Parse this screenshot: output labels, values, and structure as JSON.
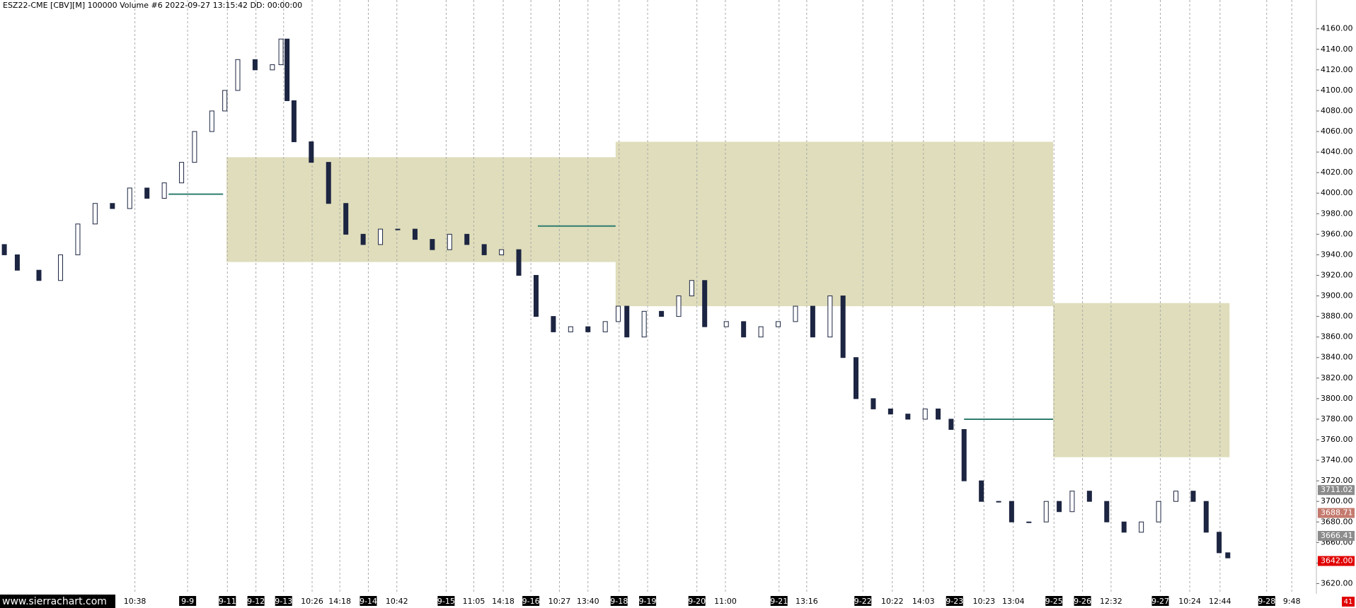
{
  "chart_data": {
    "type": "candlestick",
    "title": "ESZ22-CME [CBV][M] 100000 Volume #6 2022-09-27 13:15:42 DD: 00:00:00",
    "watermark": "www.sierrachart.com",
    "corner_label": "41",
    "xlim": [
      0,
      1520
    ],
    "ylim": [
      3610,
      4188
    ],
    "yticks": [
      {
        "value": 3620,
        "label": "3620.00"
      },
      {
        "value": 3640,
        "label": "3640.00"
      },
      {
        "value": 3660,
        "label": "3660.00"
      },
      {
        "value": 3680,
        "label": "3680.00"
      },
      {
        "value": 3700,
        "label": "3700.00"
      },
      {
        "value": 3720,
        "label": "3720.00"
      },
      {
        "value": 3740,
        "label": "3740.00"
      },
      {
        "value": 3760,
        "label": "3760.00"
      },
      {
        "value": 3780,
        "label": "3780.00"
      },
      {
        "value": 3800,
        "label": "3800.00"
      },
      {
        "value": 3820,
        "label": "3820.00"
      },
      {
        "value": 3840,
        "label": "3840.00"
      },
      {
        "value": 3860,
        "label": "3860.00"
      },
      {
        "value": 3880,
        "label": "3880.00"
      },
      {
        "value": 3900,
        "label": "3900.00"
      },
      {
        "value": 3920,
        "label": "3920.00"
      },
      {
        "value": 3940,
        "label": "3940.00"
      },
      {
        "value": 3960,
        "label": "3960.00"
      },
      {
        "value": 3980,
        "label": "3980.00"
      },
      {
        "value": 4000,
        "label": "4000.00"
      },
      {
        "value": 4020,
        "label": "4020.00"
      },
      {
        "value": 4040,
        "label": "4040.00"
      },
      {
        "value": 4060,
        "label": "4060.00"
      },
      {
        "value": 4080,
        "label": "4080.00"
      },
      {
        "value": 4100,
        "label": "4100.00"
      },
      {
        "value": 4120,
        "label": "4120.00"
      },
      {
        "value": 4140,
        "label": "4140.00"
      },
      {
        "value": 4160,
        "label": "4160.00"
      }
    ],
    "xticks": [
      {
        "value": 156,
        "label": "10:38"
      },
      {
        "value": 217,
        "label": "9-9"
      },
      {
        "value": 263,
        "label": "9-11"
      },
      {
        "value": 296,
        "label": "9-12"
      },
      {
        "value": 328,
        "label": "9-13"
      },
      {
        "value": 361,
        "label": "10:26"
      },
      {
        "value": 393,
        "label": "14:18"
      },
      {
        "value": 426,
        "label": "9-14"
      },
      {
        "value": 459,
        "label": "10:42"
      },
      {
        "value": 516,
        "label": "9-15"
      },
      {
        "value": 548,
        "label": "11:05"
      },
      {
        "value": 582,
        "label": "14:18"
      },
      {
        "value": 614,
        "label": "9-16"
      },
      {
        "value": 647,
        "label": "10:27"
      },
      {
        "value": 680,
        "label": "13:40"
      },
      {
        "value": 716,
        "label": "9-18"
      },
      {
        "value": 749,
        "label": "9-19"
      },
      {
        "value": 806,
        "label": "9-20"
      },
      {
        "value": 839,
        "label": "11:00"
      },
      {
        "value": 901,
        "label": "9-21"
      },
      {
        "value": 933,
        "label": "13:16"
      },
      {
        "value": 998,
        "label": "9-22"
      },
      {
        "value": 1032,
        "label": "10:22"
      },
      {
        "value": 1068,
        "label": "14:03"
      },
      {
        "value": 1104,
        "label": "9-23"
      },
      {
        "value": 1138,
        "label": "10:23"
      },
      {
        "value": 1172,
        "label": "13:04"
      },
      {
        "value": 1219,
        "label": "9-25"
      },
      {
        "value": 1252,
        "label": "9-26"
      },
      {
        "value": 1285,
        "label": "12:32"
      },
      {
        "value": 1342,
        "label": "9-27"
      },
      {
        "value": 1376,
        "label": "10:24"
      },
      {
        "value": 1411,
        "label": "12:44"
      },
      {
        "value": 1465,
        "label": "9-28"
      },
      {
        "value": 1494,
        "label": "9:48"
      }
    ],
    "grid": true,
    "x": [
      5,
      20,
      45,
      70,
      90,
      110,
      130,
      150,
      170,
      190,
      210,
      225,
      245,
      260,
      275,
      295,
      315,
      325,
      332,
      340,
      360,
      380,
      400,
      420,
      440,
      460,
      480,
      500,
      520,
      540,
      560,
      580,
      600,
      620,
      640,
      660,
      680,
      700,
      715,
      725,
      745,
      765,
      785,
      800,
      815,
      840,
      860,
      880,
      900,
      920,
      940,
      960,
      975,
      990,
      1010,
      1030,
      1050,
      1070,
      1085,
      1100,
      1115,
      1135,
      1155,
      1170,
      1190,
      1210,
      1225,
      1240,
      1260,
      1280,
      1300,
      1320,
      1340,
      1360,
      1380,
      1395,
      1410,
      1420
    ],
    "open": [
      3950,
      3940,
      3925,
      3915,
      3940,
      3970,
      3990,
      3985,
      4005,
      3995,
      4010,
      4030,
      4060,
      4080,
      4100,
      4130,
      4120,
      4125,
      4150,
      4090,
      4050,
      4030,
      3990,
      3960,
      3950,
      3965,
      3965,
      3955,
      3945,
      3960,
      3950,
      3940,
      3945,
      3920,
      3880,
      3865,
      3870,
      3865,
      3875,
      3890,
      3860,
      3885,
      3880,
      3900,
      3915,
      3870,
      3875,
      3860,
      3870,
      3875,
      3890,
      3860,
      3900,
      3840,
      3800,
      3790,
      3785,
      3780,
      3790,
      3780,
      3770,
      3720,
      3700,
      3700,
      3680,
      3680,
      3700,
      3690,
      3710,
      3700,
      3680,
      3670,
      3680,
      3700,
      3710,
      3700,
      3670,
      3650
    ],
    "close": [
      3940,
      3925,
      3915,
      3940,
      3970,
      3990,
      3985,
      4005,
      3995,
      4010,
      4030,
      4060,
      4080,
      4100,
      4130,
      4120,
      4125,
      4150,
      4090,
      4050,
      4030,
      3990,
      3960,
      3950,
      3965,
      3965,
      3955,
      3945,
      3960,
      3950,
      3940,
      3945,
      3920,
      3880,
      3865,
      3870,
      3865,
      3875,
      3890,
      3860,
      3885,
      3880,
      3900,
      3915,
      3870,
      3875,
      3860,
      3870,
      3875,
      3890,
      3860,
      3900,
      3840,
      3800,
      3790,
      3785,
      3780,
      3790,
      3780,
      3770,
      3720,
      3700,
      3700,
      3680,
      3680,
      3700,
      3690,
      3710,
      3700,
      3680,
      3670,
      3680,
      3700,
      3710,
      3700,
      3670,
      3650,
      3645
    ],
    "up_color": "#ffffff",
    "down_color": "#1c2541",
    "zones": [
      {
        "x0": 262,
        "x1": 712,
        "top": 4035,
        "bottom": 3933
      },
      {
        "x0": 712,
        "x1": 1218,
        "top": 4050,
        "bottom": 3890
      },
      {
        "x0": 1218,
        "x1": 1422,
        "top": 3893,
        "bottom": 3743
      }
    ],
    "zone_color": "#c9c68e",
    "poc_lines": [
      {
        "x0": 195,
        "x1": 258,
        "price": 3999
      },
      {
        "x0": 622,
        "x1": 712,
        "price": 3968
      },
      {
        "x0": 1115,
        "x1": 1218,
        "price": 3780
      }
    ],
    "poc_color": "#2e7d6e",
    "price_labels": [
      {
        "value": 3711.02,
        "label": "3711.02",
        "color": "#8c8c8c"
      },
      {
        "value": 3688.71,
        "label": "3688.71",
        "color": "#c47a6e"
      },
      {
        "value": 3666.41,
        "label": "3666.41",
        "color": "#8c8c8c"
      },
      {
        "value": 3642,
        "label": "3642.00",
        "color": "#e00000"
      }
    ]
  }
}
